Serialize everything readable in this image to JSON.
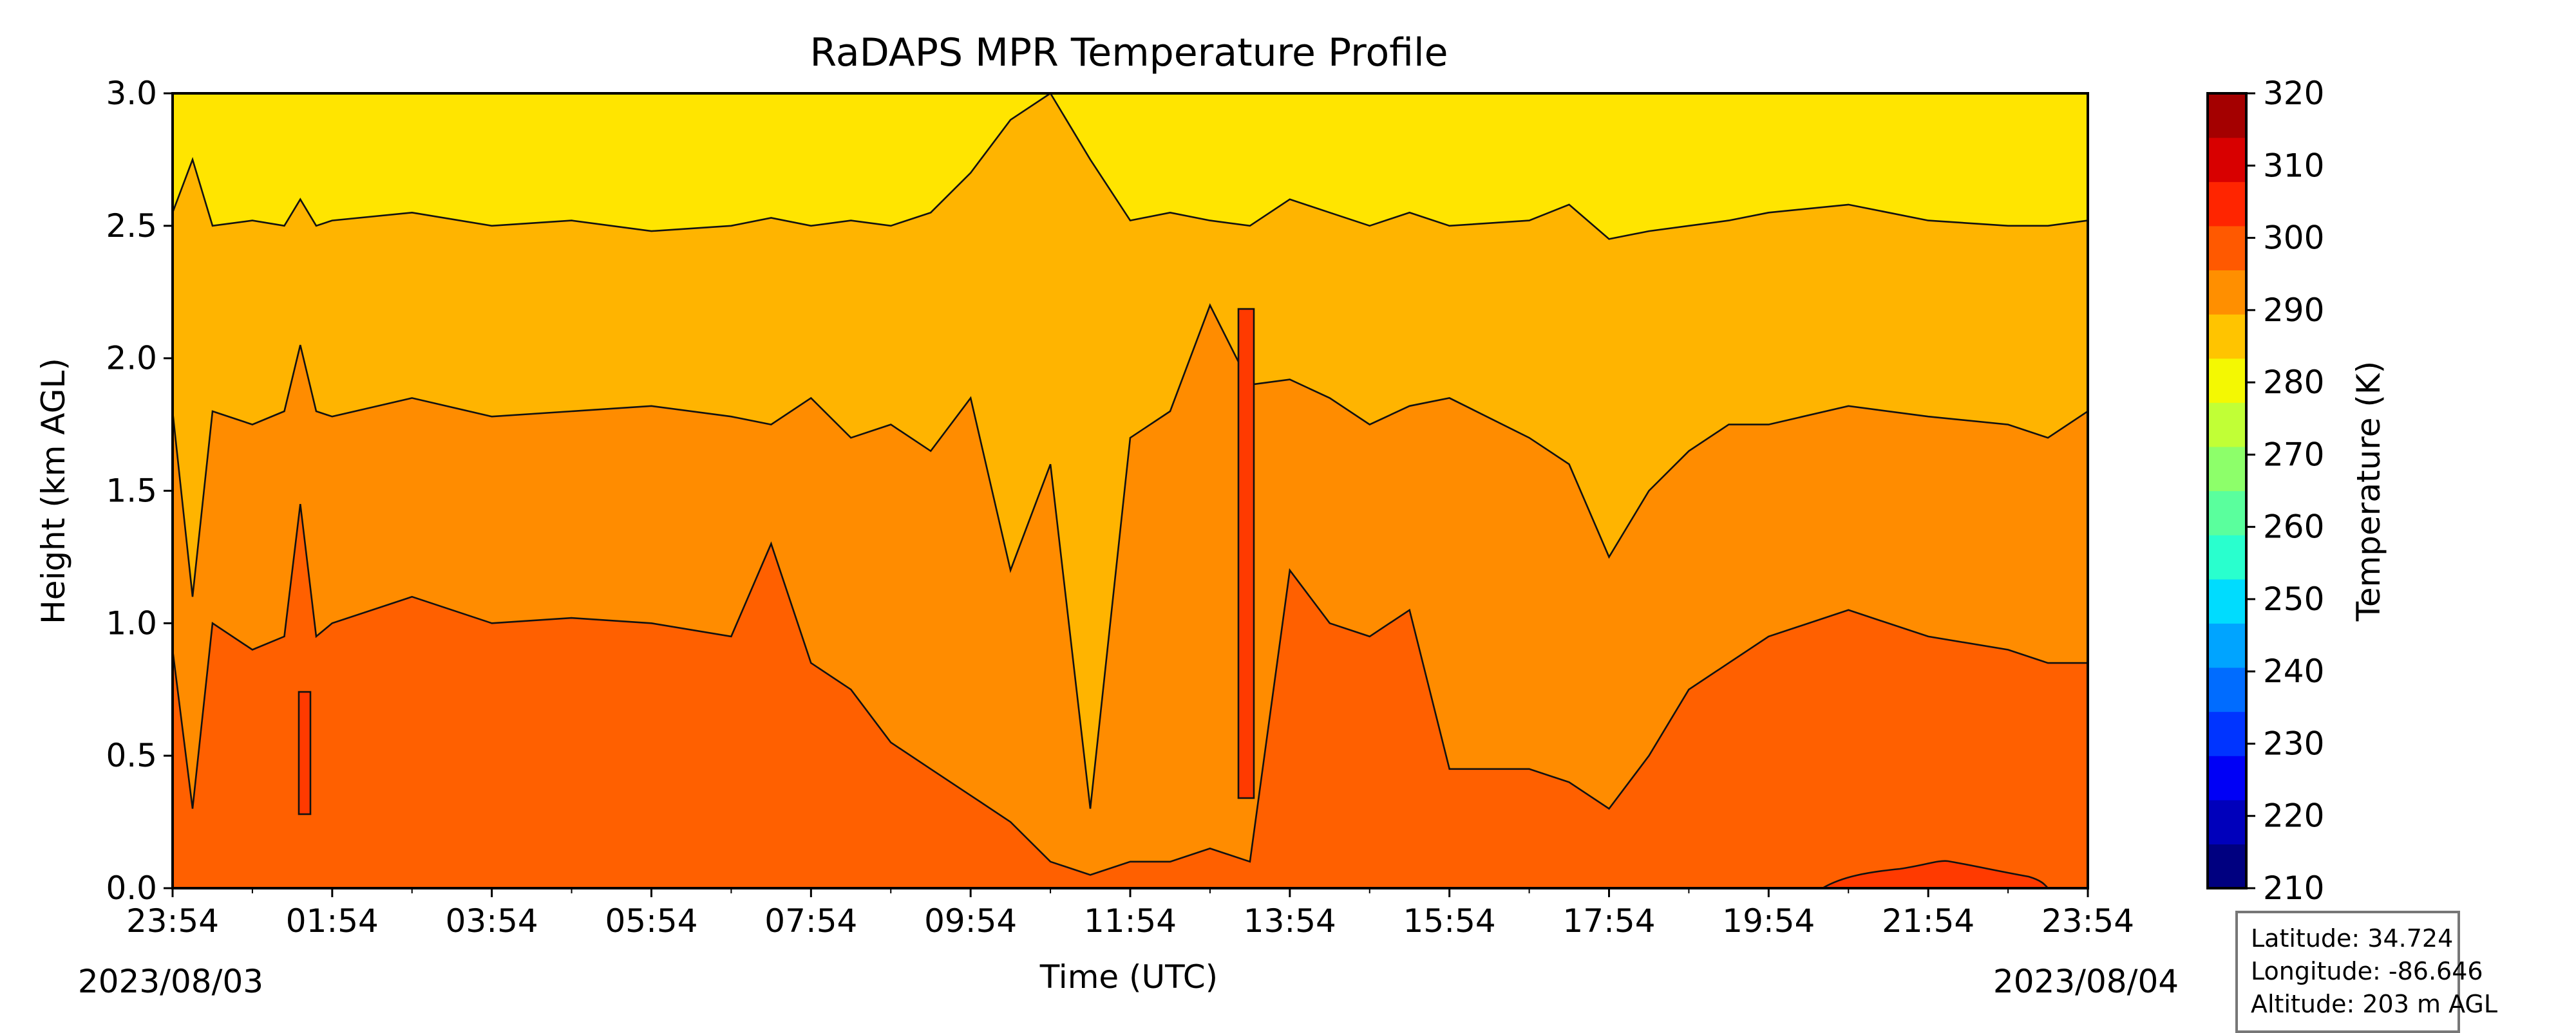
{
  "chart_data": {
    "type": "heatmap",
    "subtype": "filled-contour",
    "title": "RaDAPS MPR Temperature Profile",
    "xlabel": "Time (UTC)",
    "ylabel": "Height (km AGL)",
    "x_tick_labels": [
      "23:54",
      "01:54",
      "03:54",
      "05:54",
      "07:54",
      "09:54",
      "11:54",
      "13:54",
      "15:54",
      "17:54",
      "19:54",
      "21:54",
      "23:54"
    ],
    "x_start_date_label": "2023/08/03",
    "x_end_date_label": "2023/08/04",
    "x_range_hours": [
      0,
      24
    ],
    "x_range": [
      "2023-08-03 23:54",
      "2023-08-04 23:54"
    ],
    "ylim": [
      0.0,
      3.0
    ],
    "y_ticks": [
      0.0,
      0.5,
      1.0,
      1.5,
      2.0,
      2.5,
      3.0
    ],
    "y_tick_labels": [
      "0.0",
      "0.5",
      "1.0",
      "1.5",
      "2.0",
      "2.5",
      "3.0"
    ],
    "colorbar": {
      "label": "Temperature (K)",
      "range": [
        210,
        320
      ],
      "ticks": [
        210,
        220,
        230,
        240,
        250,
        260,
        270,
        280,
        290,
        300,
        310,
        320
      ],
      "tick_labels": [
        "210",
        "220",
        "230",
        "240",
        "250",
        "260",
        "270",
        "280",
        "290",
        "300",
        "310",
        "320"
      ],
      "level_colors": [
        "#000080",
        "#0000bb",
        "#0000f6",
        "#0034ff",
        "#006cff",
        "#00a4ff",
        "#00dcfe",
        "#29ffce",
        "#5aff9d",
        "#8dff6a",
        "#c1ff36",
        "#f4f802",
        "#ffc400",
        "#ff8f00",
        "#ff5900",
        "#ff2500",
        "#d80000",
        "#a40000"
      ]
    },
    "contour_levels": [
      {
        "temp_range": [
          280,
          285
        ],
        "color": "#ffe500",
        "description": "top band"
      },
      {
        "temp_range": [
          285,
          290
        ],
        "color": "#ffb400"
      },
      {
        "temp_range": [
          290,
          295
        ],
        "color": "#ff8c00"
      },
      {
        "temp_range": [
          295,
          300
        ],
        "color": "#ff6000"
      },
      {
        "temp_range": [
          300,
          305
        ],
        "color": "#ff3a00"
      },
      {
        "temp_range": [
          305,
          310
        ],
        "color": "#d00000"
      }
    ],
    "isotherm_heights_km": {
      "series_time_hours": [
        0,
        0.25,
        0.5,
        1,
        1.4,
        1.6,
        1.8,
        2,
        3,
        4,
        5,
        6,
        7,
        7.5,
        8,
        8.5,
        9,
        9.5,
        10,
        10.5,
        11,
        11.5,
        12,
        12.5,
        13,
        13.5,
        14,
        14.5,
        15,
        15.5,
        16,
        17,
        17.5,
        18,
        18.5,
        19,
        19.5,
        20,
        21,
        22,
        23,
        23.5,
        24
      ],
      "boundary_285_290": [
        2.55,
        2.75,
        2.5,
        2.52,
        2.5,
        2.6,
        2.5,
        2.52,
        2.55,
        2.5,
        2.52,
        2.48,
        2.5,
        2.53,
        2.5,
        2.52,
        2.5,
        2.55,
        2.7,
        2.9,
        3.0,
        2.75,
        2.52,
        2.55,
        2.52,
        2.5,
        2.6,
        2.55,
        2.5,
        2.55,
        2.5,
        2.52,
        2.58,
        2.45,
        2.48,
        2.5,
        2.52,
        2.55,
        2.58,
        2.52,
        2.5,
        2.5,
        2.52
      ],
      "boundary_290_295": [
        1.8,
        1.1,
        1.8,
        1.75,
        1.8,
        2.05,
        1.8,
        1.78,
        1.85,
        1.78,
        1.8,
        1.82,
        1.78,
        1.75,
        1.85,
        1.7,
        1.75,
        1.65,
        1.85,
        1.2,
        1.6,
        0.3,
        1.7,
        1.8,
        2.2,
        1.9,
        1.92,
        1.85,
        1.75,
        1.82,
        1.85,
        1.7,
        1.6,
        1.25,
        1.5,
        1.65,
        1.75,
        1.75,
        1.82,
        1.78,
        1.75,
        1.7,
        1.8
      ],
      "boundary_295_300": [
        0.9,
        0.3,
        1.0,
        0.9,
        0.95,
        1.45,
        0.95,
        1.0,
        1.1,
        1.0,
        1.02,
        1.0,
        0.95,
        1.3,
        0.85,
        0.75,
        0.55,
        0.45,
        0.35,
        0.25,
        0.1,
        0.05,
        0.1,
        0.1,
        0.15,
        0.1,
        1.2,
        1.0,
        0.95,
        1.05,
        0.45,
        0.45,
        0.4,
        0.3,
        0.5,
        0.75,
        0.85,
        0.95,
        1.05,
        0.95,
        0.9,
        0.85,
        0.85
      ]
    },
    "grid": false
  },
  "info_box": {
    "latitude": "Latitude: 34.724",
    "longitude": "Longitude: -86.646",
    "altitude": "Altitude: 203 m AGL"
  }
}
